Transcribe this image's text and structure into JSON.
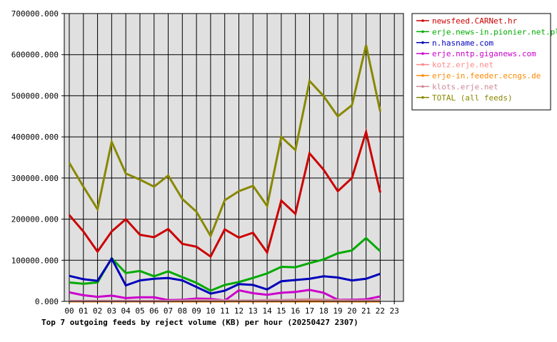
{
  "chart_data": {
    "type": "line",
    "title": "Top 7 outgoing feeds by reject volume (KB) per hour (20250427 2307)",
    "xlabel": "",
    "ylabel": "",
    "categories": [
      "00",
      "01",
      "02",
      "03",
      "04",
      "05",
      "06",
      "07",
      "08",
      "09",
      "10",
      "11",
      "12",
      "13",
      "14",
      "15",
      "16",
      "17",
      "18",
      "19",
      "20",
      "21",
      "22",
      "23"
    ],
    "y_tick_labels": [
      "0.000",
      "100000.000",
      "200000.000",
      "300000.000",
      "400000.000",
      "500000.000",
      "600000.000",
      "700000.000"
    ],
    "ylim": [
      0,
      700000
    ],
    "grid": true,
    "legend_position": "right",
    "plot_background": "#e0e0e0",
    "series": [
      {
        "name": "newsfeed.CARNet.hr",
        "color": "#cc0000",
        "values": [
          210000,
          170000,
          121000,
          170000,
          200000,
          162000,
          156000,
          176000,
          140000,
          133000,
          109000,
          175000,
          155000,
          167000,
          119000,
          245000,
          213000,
          360000,
          320000,
          268000,
          300000,
          412000,
          265000,
          null
        ]
      },
      {
        "name": "erje.news-in.pionier.net.pl",
        "color": "#00aa00",
        "values": [
          46000,
          43000,
          46000,
          105000,
          69000,
          74000,
          61000,
          73000,
          59000,
          45000,
          26000,
          40000,
          47000,
          57000,
          68000,
          84000,
          83000,
          93000,
          102000,
          117000,
          124000,
          154000,
          122000,
          null
        ]
      },
      {
        "name": "n.hasname.com",
        "color": "#0000bb",
        "values": [
          62000,
          54000,
          50000,
          104000,
          39000,
          51000,
          55000,
          57000,
          51000,
          35000,
          19000,
          26000,
          42000,
          40000,
          29000,
          49000,
          52000,
          55000,
          61000,
          58000,
          51000,
          55000,
          67000,
          null
        ]
      },
      {
        "name": "erje.nntp.giganews.com",
        "color": "#cc00cc",
        "values": [
          22000,
          15000,
          11000,
          14000,
          8000,
          10000,
          10000,
          3000,
          4000,
          7000,
          6000,
          2000,
          27000,
          20000,
          16000,
          21000,
          23000,
          28000,
          21000,
          4000,
          4000,
          5000,
          12000,
          null
        ]
      },
      {
        "name": "kotz.erje.net",
        "color": "#ff8888",
        "values": [
          0,
          0,
          0,
          0,
          0,
          0,
          0,
          0,
          1000,
          1000,
          0,
          0,
          0,
          0,
          1000,
          1000,
          2000,
          3000,
          2000,
          1000,
          0,
          0,
          1000,
          null
        ]
      },
      {
        "name": "erje-in.feeder.ecngs.de",
        "color": "#ff8800",
        "values": [
          0,
          0,
          0,
          0,
          0,
          0,
          0,
          0,
          0,
          0,
          0,
          0,
          0,
          0,
          0,
          0,
          0,
          0,
          0,
          0,
          0,
          0,
          0,
          null
        ]
      },
      {
        "name": "klots.erje.net",
        "color": "#cc8899",
        "values": [
          1000,
          1000,
          1000,
          1000,
          1000,
          1000,
          1000,
          1000,
          2000,
          3000,
          3000,
          2000,
          2000,
          2000,
          3000,
          3000,
          4000,
          5000,
          4000,
          3000,
          2000,
          2000,
          3000,
          null
        ]
      },
      {
        "name": "TOTAL (all feeds)",
        "color": "#888800",
        "values": [
          337000,
          279000,
          224000,
          388000,
          311000,
          296000,
          279000,
          306000,
          249000,
          218000,
          159000,
          246000,
          268000,
          281000,
          232000,
          400000,
          368000,
          536000,
          499000,
          450000,
          477000,
          623000,
          462000,
          null
        ]
      }
    ]
  }
}
